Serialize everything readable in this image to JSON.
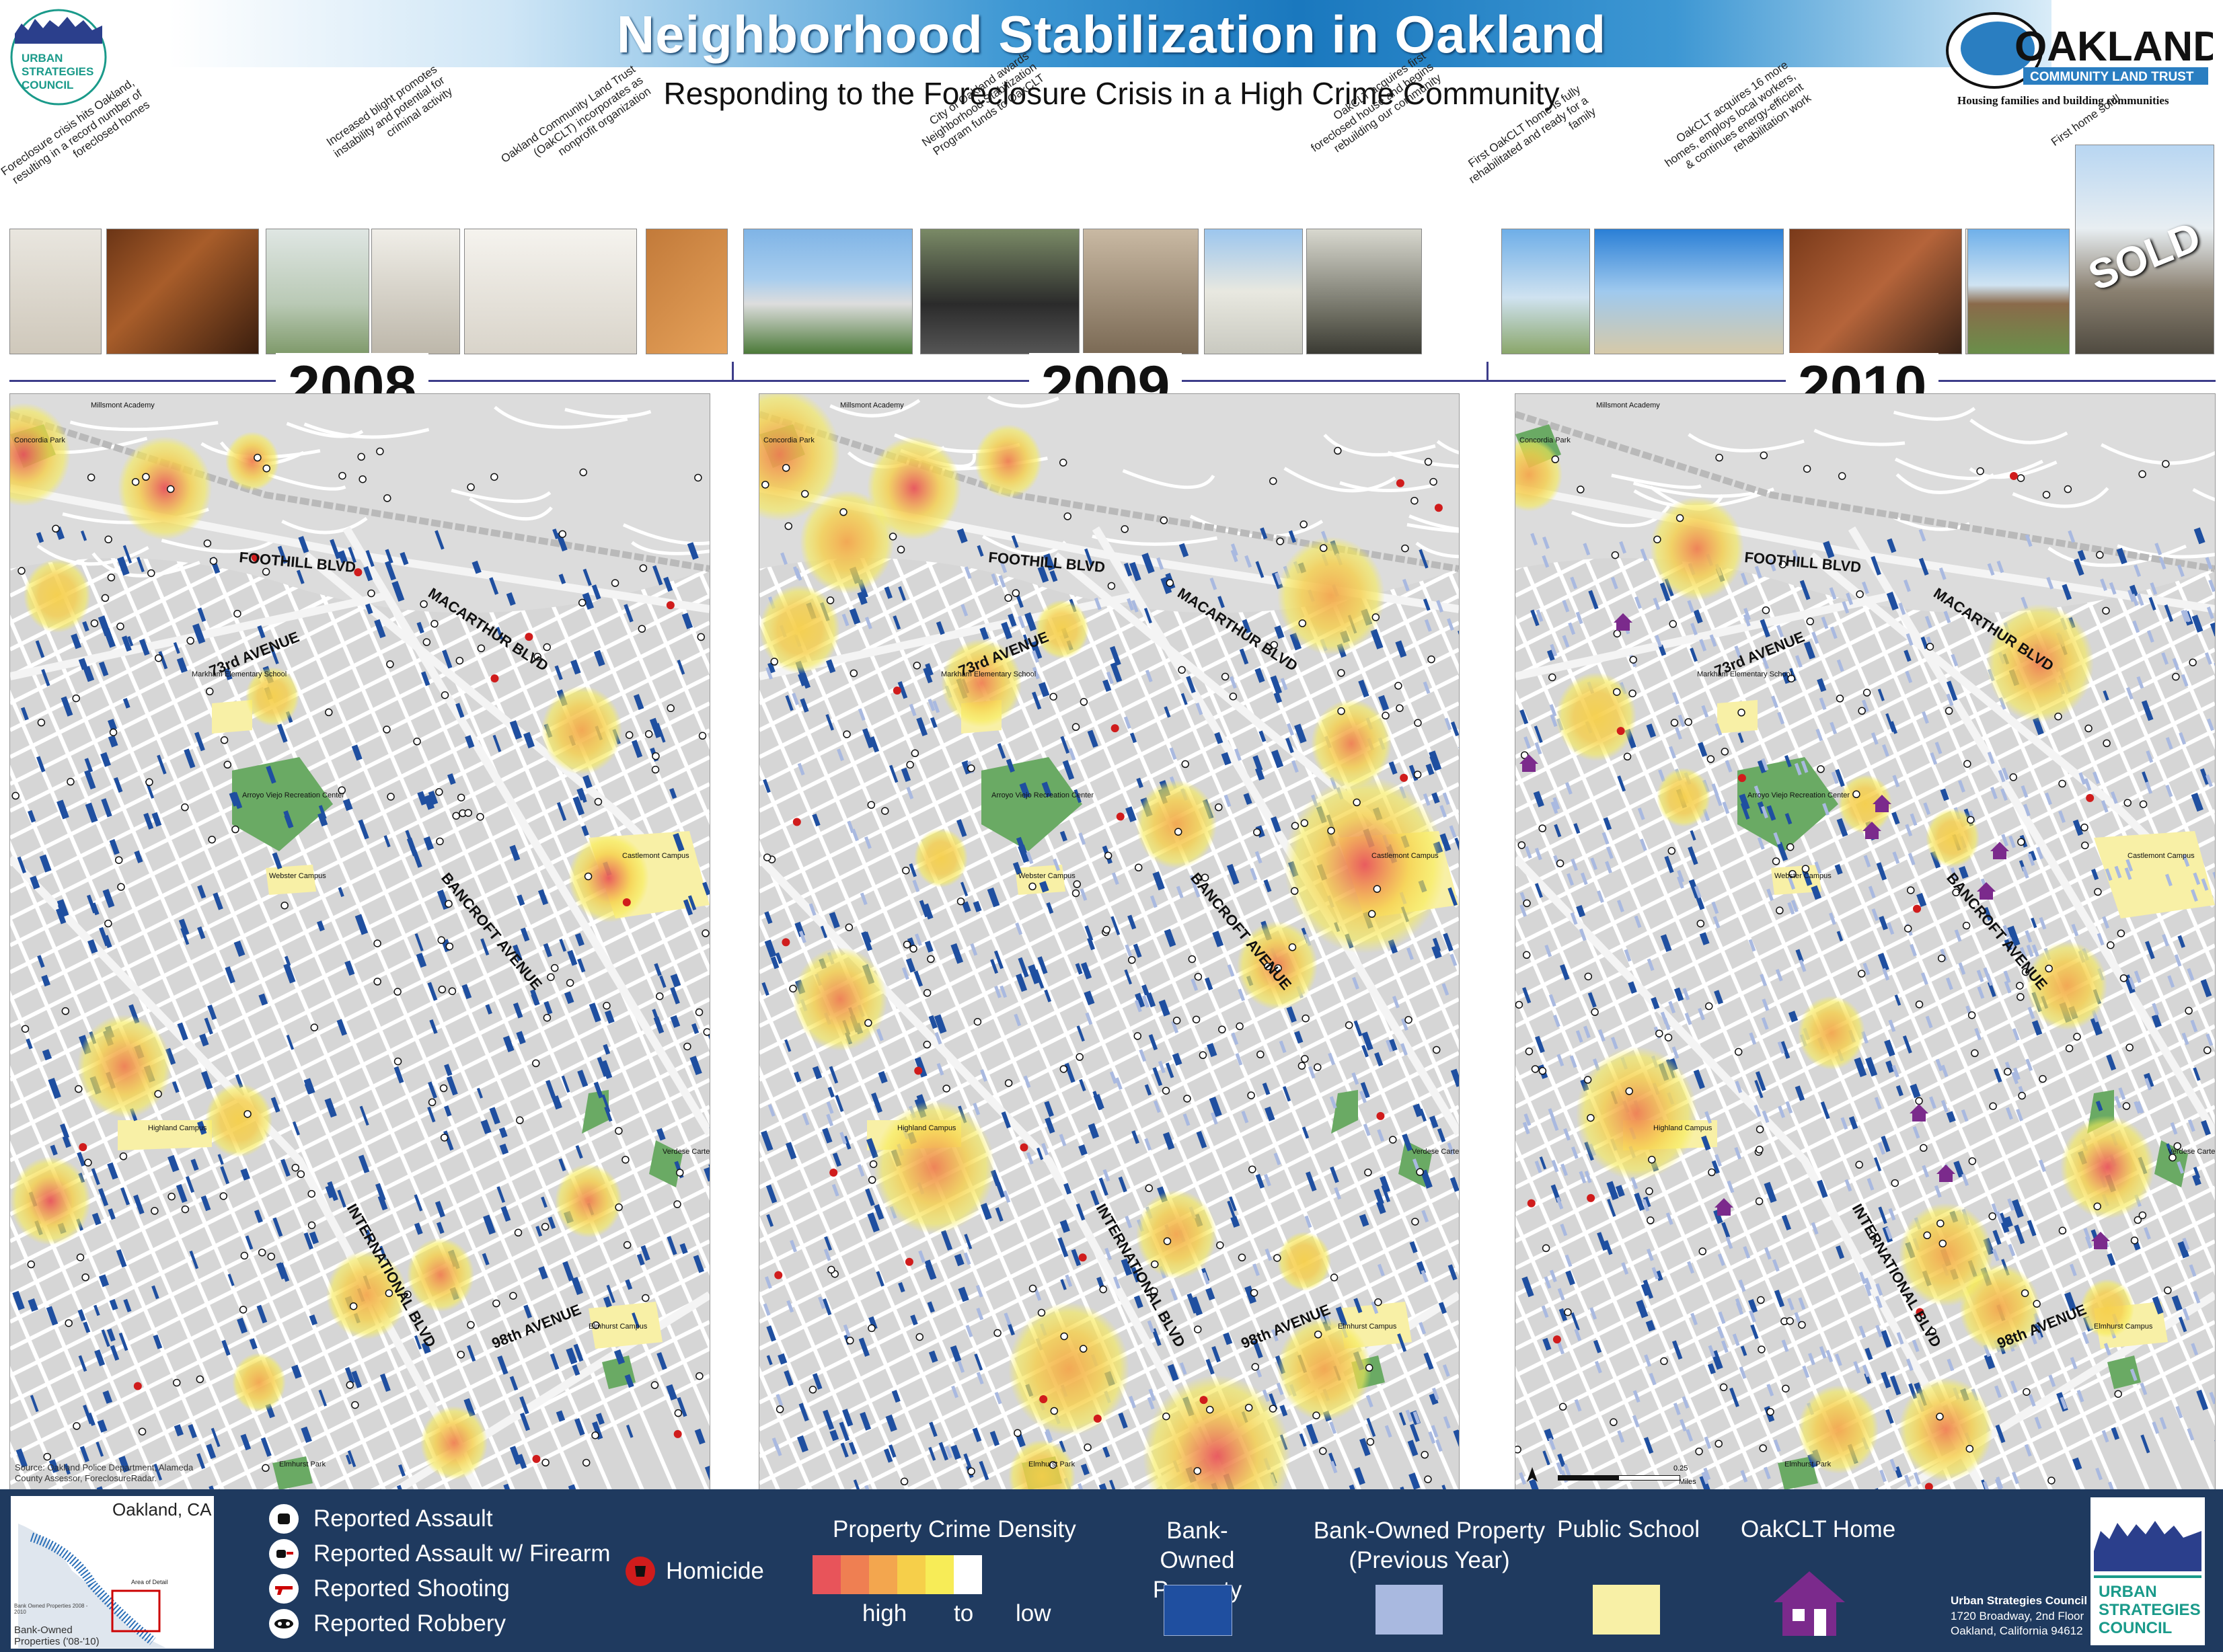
{
  "header": {
    "title": "Neighborhood Stabilization in Oakland",
    "subtitle": "Responding to the Foreclosure Crisis in a High Crime Community",
    "left_logo": {
      "line1": "URBAN",
      "line2": "STRATEGIES",
      "line3": "COUNCIL"
    },
    "right_logo": {
      "name": "OAKLAND",
      "sub": "COMMUNITY LAND TRUST",
      "tagline": "Housing families and building communities"
    }
  },
  "timeline": {
    "captions": [
      "Foreclosure crisis hits Oakland, resulting in a record number of foreclosed homes",
      "Increased blight promotes instability and potential for criminal activity",
      "Oakland Community Land Trust (OakCLT) incorporates as nonprofit organization",
      "City of Oakland awards Neighborhood Stabilization Program funds to OakCLT",
      "OakCLT acquires first foreclosed house and begins rebuilding our community",
      "First OakCLT home is fully rehabilitated and ready for a family",
      "OakCLT acquires 16 more homes, employs local workers, & continues energy-efficient rehabilitation work",
      "First home sold!"
    ],
    "sold_stamp": "SOLD"
  },
  "years": [
    "2008",
    "2009",
    "2010"
  ],
  "map_labels": {
    "streets": [
      "FOOTHILL BLVD",
      "MACARTHUR BLVD",
      "73rd AVENUE",
      "BANCROFT AVENUE",
      "INTERNATIONAL BLVD",
      "98th AVENUE"
    ],
    "places": {
      "millsmont": "Millsmont Academy",
      "concordia": "Concordia Park",
      "markham": "Markham Elementary School",
      "arroyo": "Arroyo Viejo Recreation Center",
      "webster": "Webster Campus",
      "castlemont": "Castlemont Campus",
      "highland": "Highland Campus",
      "verdese": "Verdese Carter Park",
      "elmhurst_campus": "Elmhurst Campus",
      "elmhurst_park": "Elmhurst Park"
    },
    "source": "Source: Oakland Police Department, Alameda County Assessor, ForeclosureRadar.",
    "scale": {
      "distance": "0.25",
      "unit": "Miles"
    }
  },
  "legend": {
    "inset_title": "Oakland, CA",
    "inset_area": "Area of Detail",
    "inset_bank": "Bank-Owned Properties ('08-'10)",
    "inset_note": "Bank Owned Properties 2008 - 2010",
    "crime_items": [
      "Reported Assault",
      "Reported Assault w/ Firearm",
      "Reported Shooting",
      "Reported Robbery"
    ],
    "homicide": "Homicide",
    "density_title": "Property Crime Density",
    "density_labels": [
      "high",
      "to",
      "low"
    ],
    "density_colors": [
      "#e8545a",
      "#ef7f52",
      "#f3a64e",
      "#f6cf4a",
      "#f7ec57",
      "#ffffff"
    ],
    "bank_owned": "Bank-Owned Property",
    "bank_owned_prev": "Bank-Owned Property (Previous Year)",
    "public_school": "Public School",
    "oakclt_home": "OakCLT Home",
    "org": {
      "name": "Urban Strategies Council",
      "address1": "1720 Broadway,  2nd Floor",
      "address2": "Oakland, California  94612"
    }
  },
  "colors": {
    "legend_bg": "#1f3a5f",
    "bank_owned": "#1f4fa0",
    "bank_owned_prev": "#a9b9e0",
    "school": "#f8f0a6",
    "park": "#6aaa64",
    "oakclt": "#7b2a8c",
    "homicide": "#d01c1c"
  }
}
